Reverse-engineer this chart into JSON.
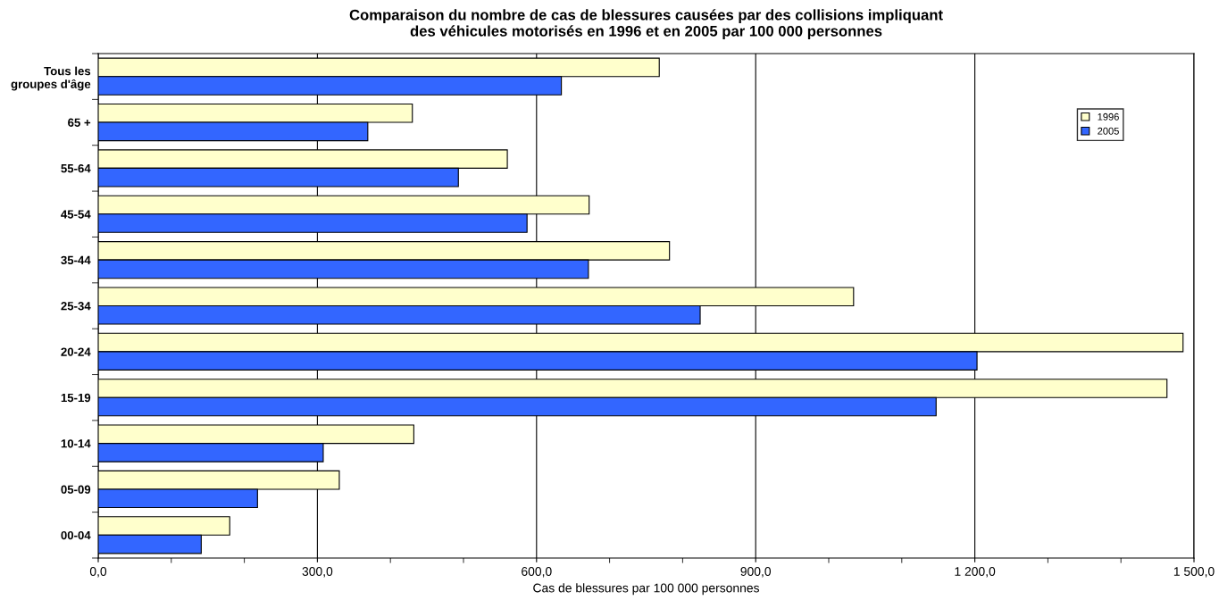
{
  "chart_data": {
    "type": "bar",
    "orientation": "horizontal",
    "title": "Comparaison du nombre de cas de blessures causées par des collisions impliquant\ndes véhicules motorisés en 1996 et en 2005 par 100 000 personnes",
    "xlabel": "Cas de blessures par 100 000 personnes",
    "categories": [
      "Tous les\ngroupes d'âge",
      "65 +",
      "55-64",
      "45-54",
      "35-44",
      "25-34",
      "20-24",
      "15-19",
      "10-14",
      "05-09",
      "00-04"
    ],
    "series": [
      {
        "name": "1996",
        "color": "#ffffcc",
        "values": [
          768,
          430,
          560,
          672,
          782,
          1034,
          1485,
          1463,
          432,
          330,
          180
        ]
      },
      {
        "name": "2005",
        "color": "#3366ff",
        "values": [
          634,
          369,
          493,
          587,
          671,
          824,
          1203,
          1147,
          308,
          218,
          141
        ]
      }
    ],
    "xlim": [
      0,
      1500
    ],
    "xticks": [
      {
        "value": 0,
        "label": "0,0"
      },
      {
        "value": 300,
        "label": "300,0"
      },
      {
        "value": 600,
        "label": "600,0"
      },
      {
        "value": 900,
        "label": "900,0"
      },
      {
        "value": 1200,
        "label": "1 200,0"
      },
      {
        "value": 1500,
        "label": "1 500,0"
      }
    ],
    "grid": "x",
    "legend": "top right"
  }
}
